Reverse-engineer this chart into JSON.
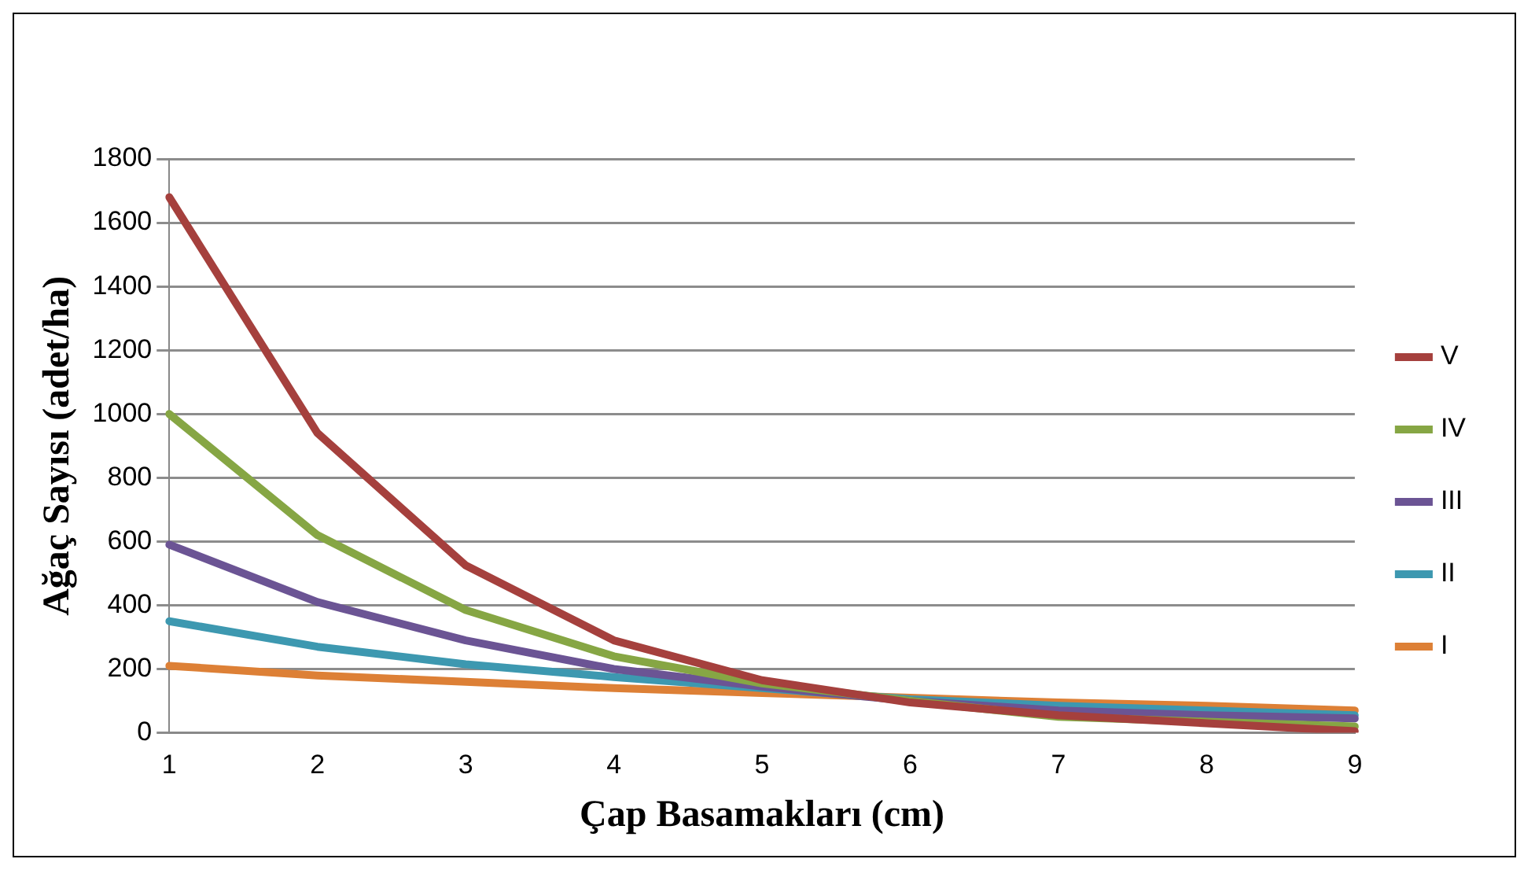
{
  "chart_data": {
    "type": "line",
    "xlabel": "Çap Basamakları (cm)",
    "ylabel": "Ağaç Sayısı (adet/ha)",
    "categories": [
      "1",
      "2",
      "3",
      "4",
      "5",
      "6",
      "7",
      "8",
      "9"
    ],
    "series": [
      {
        "name": "V",
        "color": "#a5403d",
        "values": [
          1680,
          940,
          525,
          290,
          165,
          95,
          55,
          30,
          5
        ]
      },
      {
        "name": "IV",
        "color": "#86a644",
        "values": [
          1000,
          620,
          385,
          240,
          155,
          100,
          50,
          35,
          20
        ]
      },
      {
        "name": "III",
        "color": "#6b5494",
        "values": [
          590,
          410,
          290,
          200,
          145,
          100,
          70,
          55,
          45
        ]
      },
      {
        "name": "II",
        "color": "#3d98b0",
        "values": [
          350,
          270,
          215,
          175,
          140,
          105,
          85,
          70,
          55
        ]
      },
      {
        "name": "I",
        "color": "#dd8036",
        "values": [
          210,
          180,
          160,
          140,
          125,
          110,
          95,
          85,
          70
        ]
      }
    ],
    "ylim": [
      0,
      1800
    ],
    "yticks": [
      0,
      200,
      400,
      600,
      800,
      1000,
      1200,
      1400,
      1600,
      1800
    ],
    "grid": "y",
    "legend": "right",
    "marker": "none",
    "line_style": "solid"
  }
}
